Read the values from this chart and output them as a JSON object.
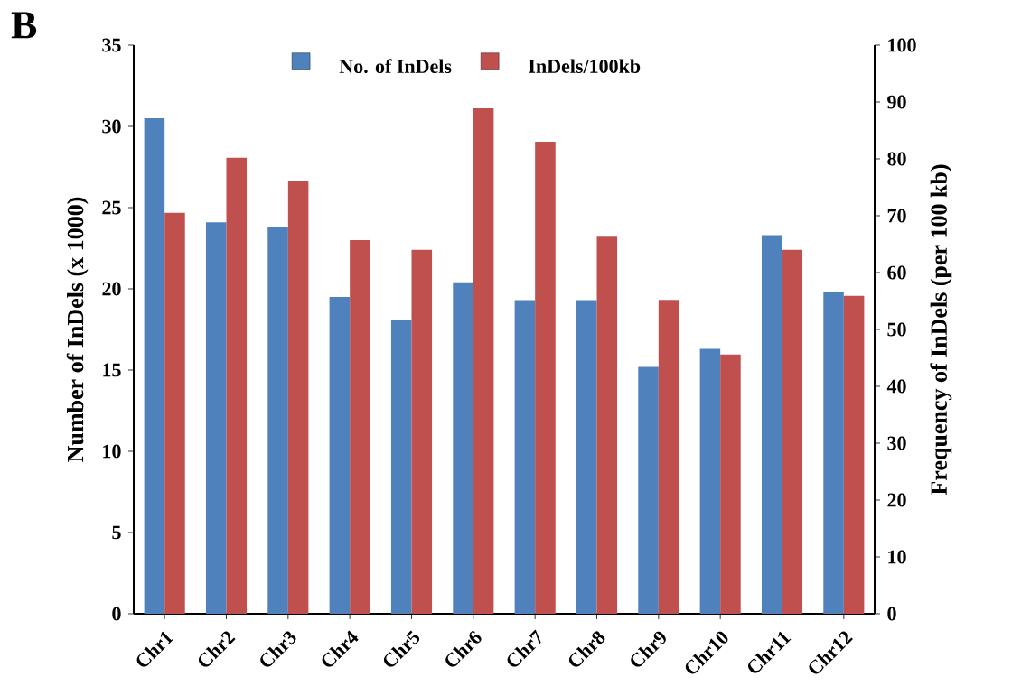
{
  "chart_data": {
    "type": "bar",
    "categories": [
      "Chr1",
      "Chr2",
      "Chr3",
      "Chr4",
      "Chr5",
      "Chr6",
      "Chr7",
      "Chr8",
      "Chr9",
      "Chr10",
      "Chr11",
      "Chr12"
    ],
    "series": [
      {
        "name": "No. of InDels",
        "color": "#4f81bd",
        "values": [
          30.5,
          24.1,
          23.8,
          19.5,
          18.1,
          20.4,
          19.3,
          19.3,
          15.2,
          16.3,
          23.3,
          19.8
        ]
      },
      {
        "name": "InDels/100kb",
        "color": "#c0504d",
        "axis": "y2",
        "values": [
          70.5,
          80.2,
          76.2,
          65.7,
          64.0,
          88.9,
          83.0,
          66.3,
          55.2,
          45.6,
          64.0,
          55.9
        ]
      }
    ],
    "ylabel": "Number of InDels (x 1000)",
    "y2label": "Frequency of InDels (per 100 kb)",
    "ylim": [
      0,
      35
    ],
    "yticks": [
      0,
      5,
      10,
      15,
      20,
      25,
      30,
      35
    ],
    "y2lim": [
      0,
      100
    ],
    "y2ticks": [
      0,
      10,
      20,
      30,
      40,
      50,
      60,
      70,
      80,
      90,
      100
    ],
    "legend": "top",
    "annotations": [
      "B"
    ]
  }
}
